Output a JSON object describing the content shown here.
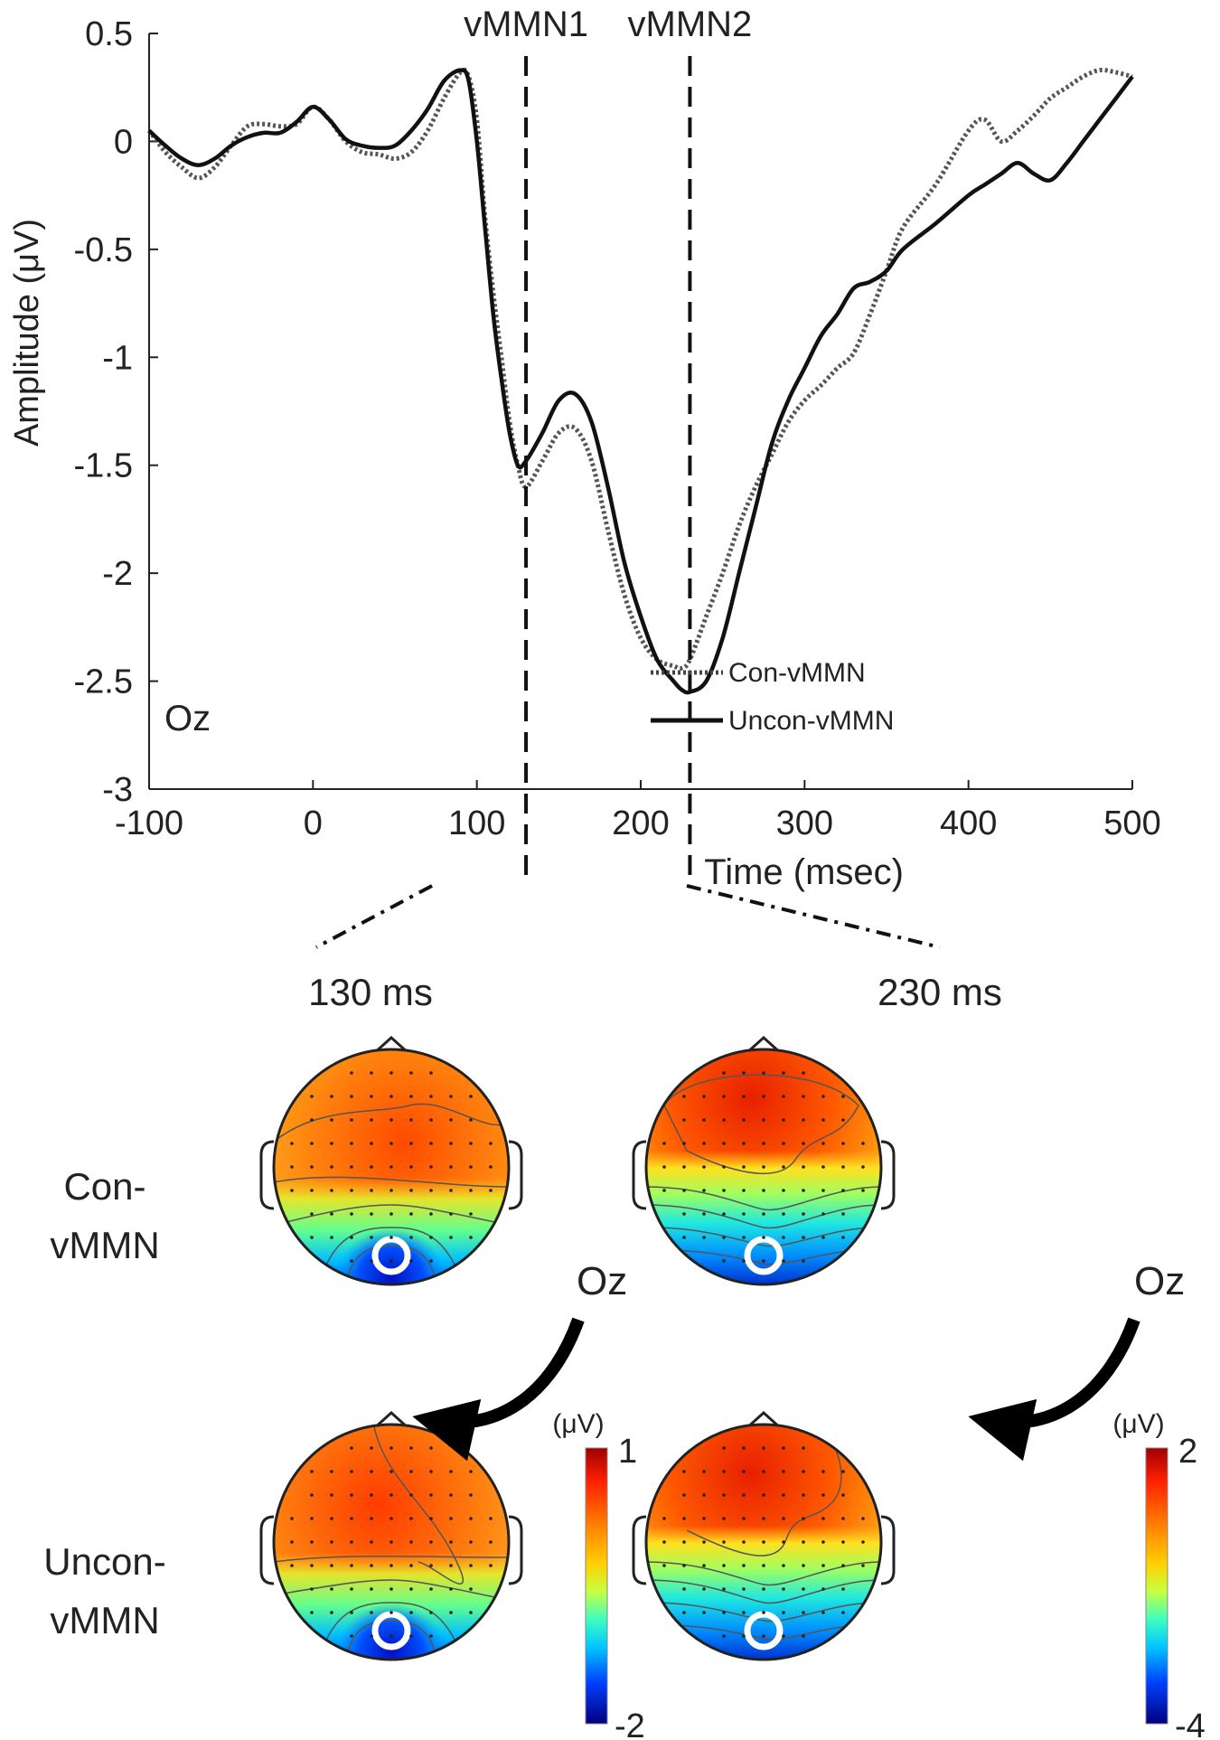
{
  "chart_data": {
    "type": "line",
    "title": "",
    "xlabel": "Time (msec)",
    "ylabel": "Amplitude (μV)",
    "xlim": [
      -100,
      500
    ],
    "ylim": [
      -3,
      0.5
    ],
    "xticks": [
      -100,
      0,
      100,
      200,
      300,
      400,
      500
    ],
    "yticks": [
      0.5,
      0,
      -0.5,
      -1,
      -1.5,
      -2,
      -2.5,
      -3
    ],
    "channel_label": "Oz",
    "series": [
      {
        "name": "Con-vMMN",
        "style": "dotted",
        "x": [
          -100,
          -90,
          -80,
          -70,
          -60,
          -50,
          -40,
          -30,
          -20,
          -10,
          0,
          10,
          20,
          30,
          40,
          50,
          60,
          70,
          80,
          90,
          95,
          100,
          105,
          110,
          115,
          120,
          125,
          130,
          140,
          150,
          160,
          170,
          180,
          190,
          200,
          210,
          220,
          225,
          230,
          240,
          250,
          260,
          270,
          280,
          290,
          300,
          310,
          320,
          330,
          340,
          350,
          360,
          380,
          400,
          410,
          420,
          430,
          440,
          450,
          460,
          470,
          480,
          490,
          500
        ],
        "y": [
          0.05,
          -0.05,
          -0.12,
          -0.17,
          -0.12,
          -0.02,
          0.07,
          0.08,
          0.07,
          0.08,
          0.16,
          0.1,
          0.0,
          -0.05,
          -0.06,
          -0.08,
          -0.05,
          0.05,
          0.2,
          0.32,
          0.3,
          0.1,
          -0.35,
          -0.7,
          -1.0,
          -1.3,
          -1.5,
          -1.6,
          -1.48,
          -1.35,
          -1.33,
          -1.48,
          -1.8,
          -2.1,
          -2.3,
          -2.4,
          -2.43,
          -2.44,
          -2.4,
          -2.2,
          -2.0,
          -1.78,
          -1.6,
          -1.45,
          -1.3,
          -1.2,
          -1.13,
          -1.05,
          -0.98,
          -0.8,
          -0.6,
          -0.4,
          -0.2,
          0.05,
          0.1,
          0.0,
          0.05,
          0.12,
          0.2,
          0.25,
          0.3,
          0.33,
          0.32,
          0.3
        ]
      },
      {
        "name": "Uncon-vMMN",
        "style": "solid",
        "x": [
          -100,
          -90,
          -80,
          -70,
          -60,
          -50,
          -40,
          -30,
          -20,
          -10,
          0,
          10,
          20,
          30,
          40,
          50,
          60,
          70,
          80,
          90,
          95,
          100,
          105,
          110,
          115,
          120,
          125,
          130,
          140,
          150,
          160,
          170,
          180,
          190,
          200,
          210,
          220,
          225,
          230,
          240,
          250,
          260,
          270,
          280,
          290,
          300,
          310,
          320,
          330,
          340,
          350,
          360,
          380,
          400,
          410,
          420,
          430,
          440,
          450,
          460,
          470,
          480,
          490,
          500
        ],
        "y": [
          0.05,
          -0.02,
          -0.08,
          -0.11,
          -0.08,
          -0.02,
          0.02,
          0.04,
          0.04,
          0.09,
          0.16,
          0.1,
          0.01,
          -0.02,
          -0.03,
          -0.02,
          0.05,
          0.15,
          0.28,
          0.33,
          0.28,
          0.0,
          -0.4,
          -0.8,
          -1.1,
          -1.35,
          -1.5,
          -1.48,
          -1.35,
          -1.2,
          -1.17,
          -1.3,
          -1.6,
          -1.95,
          -2.2,
          -2.4,
          -2.5,
          -2.54,
          -2.55,
          -2.5,
          -2.3,
          -2.0,
          -1.7,
          -1.4,
          -1.2,
          -1.05,
          -0.9,
          -0.8,
          -0.68,
          -0.65,
          -0.6,
          -0.5,
          -0.38,
          -0.25,
          -0.2,
          -0.15,
          -0.1,
          -0.15,
          -0.18,
          -0.1,
          0.0,
          0.1,
          0.2,
          0.3
        ]
      }
    ],
    "vlines": [
      {
        "label": "vMMN1",
        "x": 130
      },
      {
        "label": "vMMN2",
        "x": 230
      }
    ],
    "legend_position": "bottom-right",
    "topomaps": {
      "time_labels": [
        "130 ms",
        "230 ms"
      ],
      "row_labels": [
        [
          "Con-",
          "vMMN"
        ],
        [
          "Uncon-",
          "vMMN"
        ]
      ],
      "electrode_label": "Oz",
      "colorbars": [
        {
          "unit": "(μV)",
          "max": 1,
          "min": -2
        },
        {
          "unit": "(μV)",
          "max": 2,
          "min": -4
        }
      ],
      "colormap": [
        "#00007f",
        "#0000ff",
        "#00a0ff",
        "#22e8e0",
        "#7fff7f",
        "#e0f030",
        "#ffcc00",
        "#ff8c00",
        "#ff4000",
        "#a00000"
      ]
    }
  }
}
